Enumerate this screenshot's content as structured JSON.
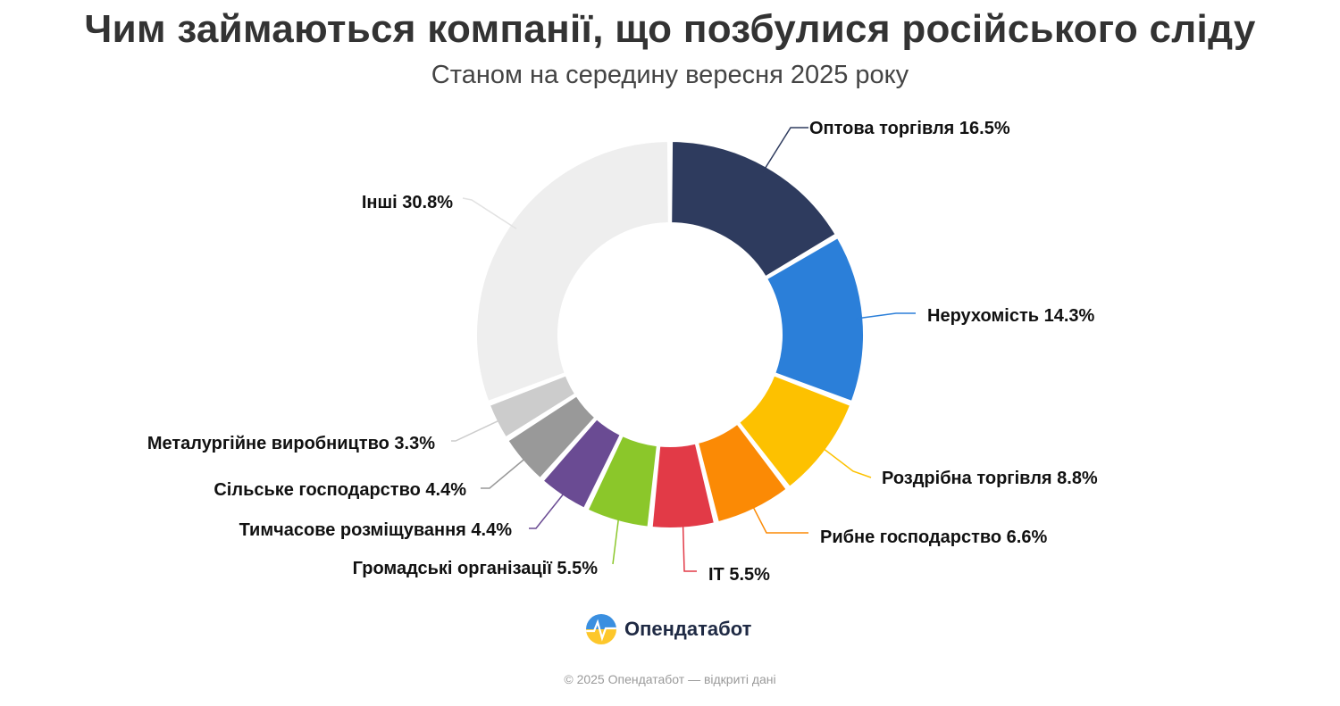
{
  "chart_data": {
    "type": "pie",
    "variant": "donut",
    "title": "Чим займаються компанії, що позбулися російського сліду",
    "subtitle": "Станом на середину вересня 2025 року",
    "unit": "%",
    "slices": [
      {
        "label": "Оптова торгівля",
        "value": 16.5,
        "color": "#2e3b5e"
      },
      {
        "label": "Нерухомість",
        "value": 14.3,
        "color": "#2b7fd9"
      },
      {
        "label": "Роздрібна торгівля",
        "value": 8.8,
        "color": "#fdc100"
      },
      {
        "label": "Рибне господарство",
        "value": 6.6,
        "color": "#fb8a05"
      },
      {
        "label": "IT",
        "value": 5.5,
        "color": "#e23a47"
      },
      {
        "label": "Громадські організації",
        "value": 5.5,
        "color": "#8bc72a"
      },
      {
        "label": "Тимчасове розміщування",
        "value": 4.4,
        "color": "#6a4b93"
      },
      {
        "label": "Сільське господарство",
        "value": 4.4,
        "color": "#999999"
      },
      {
        "label": "Металургійне виробництво",
        "value": 3.3,
        "color": "#cccccc"
      },
      {
        "label": "Інші",
        "value": 30.8,
        "color": "#eeeeee"
      }
    ]
  },
  "brand": {
    "name": "Опендатабот"
  },
  "footer": {
    "text": "© 2025 Опендатабот — відкриті дані"
  }
}
